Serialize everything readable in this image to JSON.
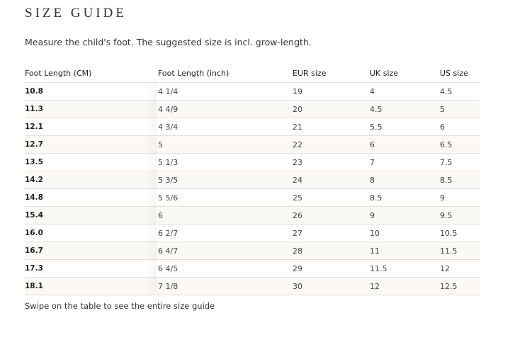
{
  "header": {
    "title": "SIZE GUIDE",
    "subtitle": "Measure the child's foot. The suggested size is incl. grow-length."
  },
  "table": {
    "columns": [
      "Foot Length (CM)",
      "Foot Length (inch)",
      "EUR size",
      "UK size",
      "US size"
    ],
    "rows": [
      [
        "10.8",
        "4 1/4",
        "19",
        "4",
        "4.5"
      ],
      [
        "11.3",
        "4 4/9",
        "20",
        "4.5",
        "5"
      ],
      [
        "12.1",
        "4 3/4",
        "21",
        "5.5",
        "6"
      ],
      [
        "12.7",
        "5",
        "22",
        "6",
        "6.5"
      ],
      [
        "13.5",
        "5 1/3",
        "23",
        "7",
        "7.5"
      ],
      [
        "14.2",
        "5 3/5",
        "24",
        "8",
        "8.5"
      ],
      [
        "14.8",
        "5 5/6",
        "25",
        "8.5",
        "9"
      ],
      [
        "15.4",
        "6",
        "26",
        "9",
        "9.5"
      ],
      [
        "16.0",
        "6 2/7",
        "27",
        "10",
        "10.5"
      ],
      [
        "16.7",
        "6 4/7",
        "28",
        "11",
        "11.5"
      ],
      [
        "17.3",
        "6 4/5",
        "29",
        "11.5",
        "12"
      ],
      [
        "18.1",
        "7 1/8",
        "30",
        "12",
        "12.5"
      ]
    ]
  },
  "footer": {
    "note": "Swipe on the table to see the entire size guide"
  }
}
